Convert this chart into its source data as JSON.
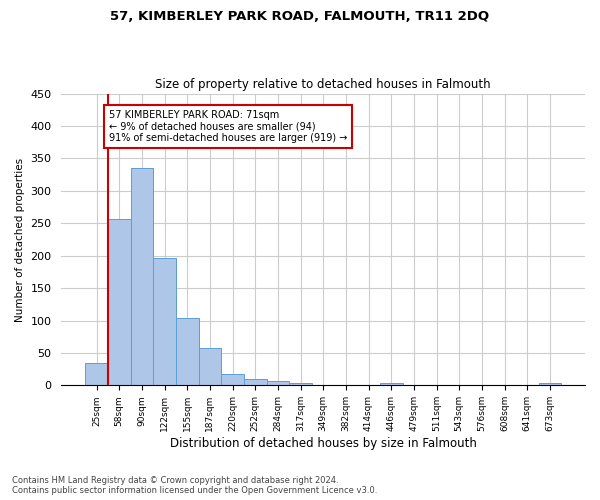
{
  "title": "57, KIMBERLEY PARK ROAD, FALMOUTH, TR11 2DQ",
  "subtitle": "Size of property relative to detached houses in Falmouth",
  "xlabel": "Distribution of detached houses by size in Falmouth",
  "ylabel": "Number of detached properties",
  "categories": [
    "25sqm",
    "58sqm",
    "90sqm",
    "122sqm",
    "155sqm",
    "187sqm",
    "220sqm",
    "252sqm",
    "284sqm",
    "317sqm",
    "349sqm",
    "382sqm",
    "414sqm",
    "446sqm",
    "479sqm",
    "511sqm",
    "543sqm",
    "576sqm",
    "608sqm",
    "641sqm",
    "673sqm"
  ],
  "values": [
    35,
    257,
    335,
    196,
    104,
    57,
    17,
    10,
    7,
    4,
    0,
    0,
    0,
    4,
    0,
    0,
    0,
    0,
    0,
    0,
    4
  ],
  "bar_color": "#aec6e8",
  "bar_edge_color": "#5a9fd4",
  "annotation_text": "57 KIMBERLEY PARK ROAD: 71sqm\n← 9% of detached houses are smaller (94)\n91% of semi-detached houses are larger (919) →",
  "annotation_box_color": "#ffffff",
  "annotation_box_edge": "#cc0000",
  "vline_color": "#cc0000",
  "ylim": [
    0,
    450
  ],
  "yticks": [
    0,
    50,
    100,
    150,
    200,
    250,
    300,
    350,
    400,
    450
  ],
  "background_color": "#ffffff",
  "grid_color": "#cccccc",
  "footer": "Contains HM Land Registry data © Crown copyright and database right 2024.\nContains public sector information licensed under the Open Government Licence v3.0."
}
